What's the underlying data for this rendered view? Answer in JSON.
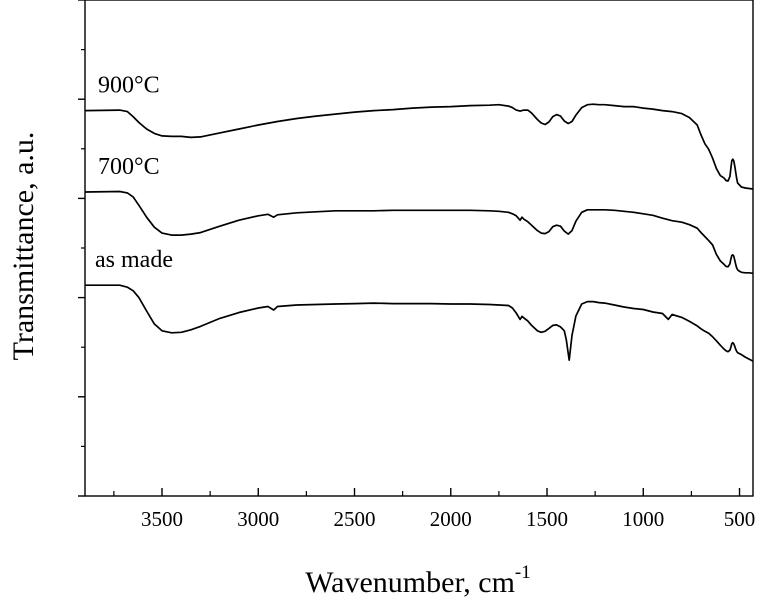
{
  "chart_data": {
    "type": "line",
    "xlabel": "Wavenumber, cm",
    "xlabel_superscript": "-1",
    "ylabel": "Transmittance, a.u.",
    "xlim": [
      3900,
      430
    ],
    "x_reversed": true,
    "ylim": [
      0,
      100
    ],
    "y_ticks_labeled": false,
    "grid": false,
    "x_ticks": [
      3500,
      3000,
      2500,
      2000,
      1500,
      1000,
      500
    ],
    "x_tick_labels": [
      "3500",
      "3000",
      "2500",
      "2000",
      "1500",
      "1000",
      "500"
    ],
    "y_ticks": [
      0,
      20,
      40,
      60,
      80,
      100
    ],
    "series": [
      {
        "name": "900°C",
        "x": [
          3900,
          3720,
          3680,
          3650,
          3620,
          3580,
          3540,
          3500,
          3450,
          3400,
          3350,
          3300,
          3200,
          3100,
          3000,
          2900,
          2800,
          2700,
          2600,
          2500,
          2400,
          2300,
          2200,
          2100,
          2000,
          1900,
          1800,
          1750,
          1700,
          1680,
          1660,
          1640,
          1620,
          1600,
          1580,
          1550,
          1530,
          1510,
          1490,
          1470,
          1450,
          1430,
          1410,
          1390,
          1370,
          1350,
          1320,
          1290,
          1260,
          1230,
          1200,
          1150,
          1100,
          1050,
          1000,
          950,
          900,
          850,
          800,
          760,
          720,
          700,
          680,
          660,
          640,
          620,
          600,
          580,
          570,
          560,
          550,
          545,
          540,
          535,
          530,
          525,
          520,
          515,
          510,
          500,
          490,
          470,
          450,
          430
        ],
        "y": [
          77.7,
          77.8,
          77.5,
          76.5,
          75.3,
          74.0,
          73.1,
          72.6,
          72.5,
          72.5,
          72.3,
          72.4,
          73.2,
          74.0,
          74.8,
          75.5,
          76.1,
          76.6,
          77.0,
          77.4,
          77.7,
          77.9,
          78.2,
          78.4,
          78.5,
          78.7,
          78.8,
          78.9,
          78.6,
          78.3,
          77.8,
          77.6,
          77.8,
          77.8,
          77.2,
          75.9,
          75.2,
          74.9,
          75.4,
          76.5,
          76.9,
          76.6,
          75.6,
          75.1,
          75.5,
          76.8,
          78.3,
          78.9,
          79.0,
          78.9,
          78.9,
          78.7,
          78.5,
          78.5,
          78.2,
          78.0,
          77.7,
          77.5,
          77.1,
          76.3,
          74.8,
          72.8,
          71.0,
          69.9,
          68.1,
          66.0,
          64.6,
          64.1,
          63.6,
          63.5,
          64.4,
          66.1,
          67.6,
          67.9,
          67.6,
          66.6,
          65.3,
          64.1,
          63.1,
          62.7,
          62.3,
          62.1,
          62.0,
          61.9
        ]
      },
      {
        "name": "700°C",
        "x": [
          3900,
          3720,
          3680,
          3650,
          3620,
          3580,
          3540,
          3500,
          3450,
          3400,
          3350,
          3300,
          3200,
          3100,
          3000,
          2950,
          2920,
          2900,
          2800,
          2700,
          2600,
          2500,
          2400,
          2300,
          2200,
          2100,
          2000,
          1900,
          1800,
          1750,
          1700,
          1680,
          1660,
          1640,
          1630,
          1620,
          1600,
          1580,
          1550,
          1530,
          1510,
          1490,
          1470,
          1450,
          1430,
          1410,
          1390,
          1370,
          1350,
          1320,
          1290,
          1260,
          1230,
          1200,
          1150,
          1100,
          1050,
          1000,
          950,
          900,
          850,
          800,
          760,
          720,
          700,
          680,
          660,
          640,
          620,
          600,
          580,
          570,
          560,
          550,
          545,
          540,
          535,
          530,
          525,
          520,
          515,
          510,
          500,
          490,
          470,
          450,
          430
        ],
        "y": [
          61.3,
          61.4,
          61.1,
          60.3,
          58.6,
          56.2,
          54.2,
          53.0,
          52.6,
          52.6,
          52.8,
          53.1,
          54.4,
          55.6,
          56.5,
          56.8,
          56.2,
          56.7,
          57.1,
          57.3,
          57.5,
          57.5,
          57.5,
          57.6,
          57.6,
          57.6,
          57.6,
          57.6,
          57.5,
          57.4,
          57.2,
          56.9,
          56.5,
          55.6,
          56.2,
          55.8,
          55.3,
          54.6,
          53.5,
          53.0,
          52.9,
          53.3,
          54.3,
          54.6,
          54.4,
          53.4,
          52.8,
          53.5,
          55.4,
          57.2,
          57.7,
          57.7,
          57.7,
          57.7,
          57.6,
          57.4,
          57.2,
          56.9,
          56.6,
          56.0,
          55.5,
          55.2,
          54.7,
          54.0,
          53.1,
          52.3,
          51.5,
          50.6,
          48.7,
          47.4,
          46.7,
          46.3,
          46.2,
          46.8,
          47.8,
          48.5,
          48.6,
          48.4,
          47.6,
          46.7,
          46.0,
          45.6,
          45.3,
          45.1,
          45.0,
          45.0,
          44.9
        ]
      },
      {
        "name": "as made",
        "x": [
          3900,
          3720,
          3680,
          3650,
          3620,
          3580,
          3540,
          3500,
          3450,
          3400,
          3350,
          3300,
          3200,
          3100,
          3000,
          2950,
          2920,
          2900,
          2800,
          2700,
          2600,
          2500,
          2400,
          2300,
          2200,
          2100,
          2000,
          1900,
          1800,
          1750,
          1700,
          1680,
          1660,
          1640,
          1630,
          1620,
          1600,
          1580,
          1550,
          1530,
          1510,
          1490,
          1470,
          1450,
          1430,
          1410,
          1400,
          1390,
          1385,
          1380,
          1370,
          1350,
          1320,
          1290,
          1260,
          1230,
          1200,
          1150,
          1100,
          1050,
          1000,
          950,
          900,
          870,
          850,
          800,
          760,
          720,
          700,
          680,
          660,
          640,
          620,
          600,
          580,
          570,
          560,
          550,
          545,
          540,
          535,
          530,
          525,
          520,
          515,
          510,
          500,
          490,
          470,
          450,
          430
        ],
        "y": [
          42.5,
          42.5,
          42.1,
          41.4,
          40.0,
          37.3,
          34.7,
          33.3,
          32.9,
          33.0,
          33.5,
          34.2,
          35.8,
          37.0,
          37.9,
          38.2,
          37.5,
          38.2,
          38.5,
          38.6,
          38.7,
          38.8,
          38.9,
          38.8,
          38.8,
          38.8,
          38.7,
          38.7,
          38.6,
          38.5,
          38.4,
          37.9,
          36.9,
          35.6,
          36.2,
          35.9,
          35.3,
          34.4,
          33.3,
          33.0,
          33.2,
          33.8,
          34.4,
          34.5,
          34.1,
          33.3,
          31.5,
          28.8,
          27.4,
          29.0,
          32.4,
          36.3,
          38.7,
          39.2,
          39.2,
          39.0,
          38.9,
          38.5,
          38.1,
          37.8,
          37.6,
          37.1,
          36.8,
          35.6,
          36.6,
          36.0,
          35.2,
          34.3,
          33.7,
          33.2,
          32.8,
          32.1,
          31.3,
          30.4,
          29.6,
          29.3,
          29.1,
          29.4,
          30.0,
          30.7,
          30.9,
          30.7,
          30.2,
          29.6,
          29.2,
          28.9,
          28.7,
          28.5,
          28.0,
          27.6,
          27.2
        ]
      }
    ]
  }
}
